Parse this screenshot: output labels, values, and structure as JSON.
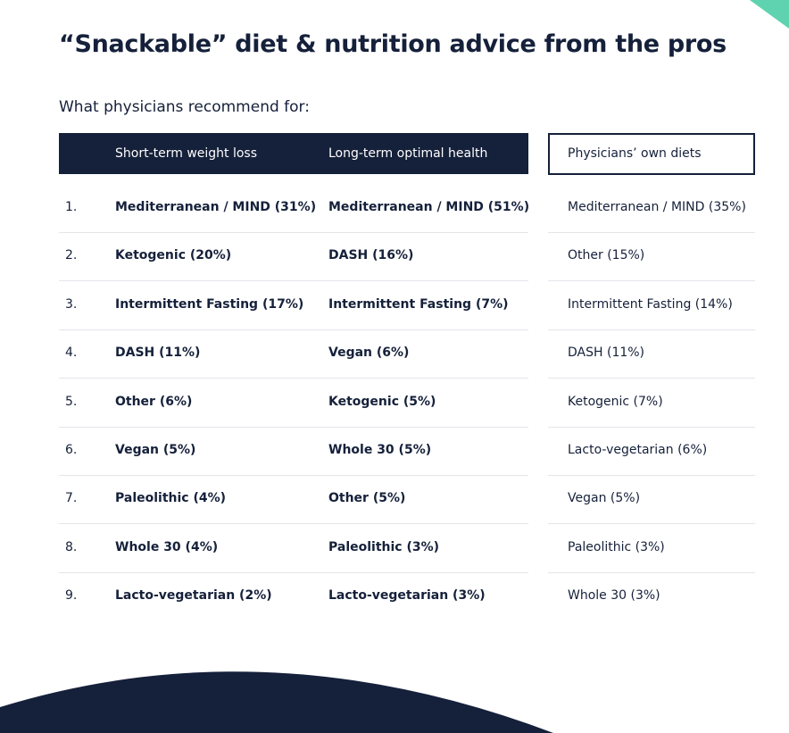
{
  "title": "“Snackable” diet & nutrition advice from the pros",
  "subtitle": "What physicians recommend for:",
  "table": {
    "headers": [
      "Short-term weight loss",
      "Long-term optimal health",
      "Physicians’ own diets"
    ],
    "rows": [
      [
        "1.",
        "Mediterranean / MIND (31%)",
        "Mediterranean / MIND (51%)",
        "Mediterranean / MIND (35%)"
      ],
      [
        "2.",
        "Ketogenic (20%)",
        "DASH (16%)",
        "Other (15%)"
      ],
      [
        "3.",
        "Intermittent Fasting (17%)",
        "Intermittent Fasting (7%)",
        "Intermittent Fasting (14%)"
      ],
      [
        "4.",
        "DASH (11%)",
        "Vegan (6%)",
        "DASH (11%)"
      ],
      [
        "5.",
        "Other (6%)",
        "Ketogenic (5%)",
        "Ketogenic (7%)"
      ],
      [
        "6.",
        "Vegan (5%)",
        "Whole 30 (5%)",
        "Lacto-vegetarian (6%)"
      ],
      [
        "7.",
        "Paleolithic (4%)",
        "Other (5%)",
        "Vegan (5%)"
      ],
      [
        "8.",
        "Whole 30 (4%)",
        "Paleolithic (3%)",
        "Paleolithic (3%)"
      ],
      [
        "9.",
        "Lacto-vegetarian (2%)",
        "Lacto-vegetarian (3%)",
        "Whole 30 (3%)"
      ]
    ]
  }
}
